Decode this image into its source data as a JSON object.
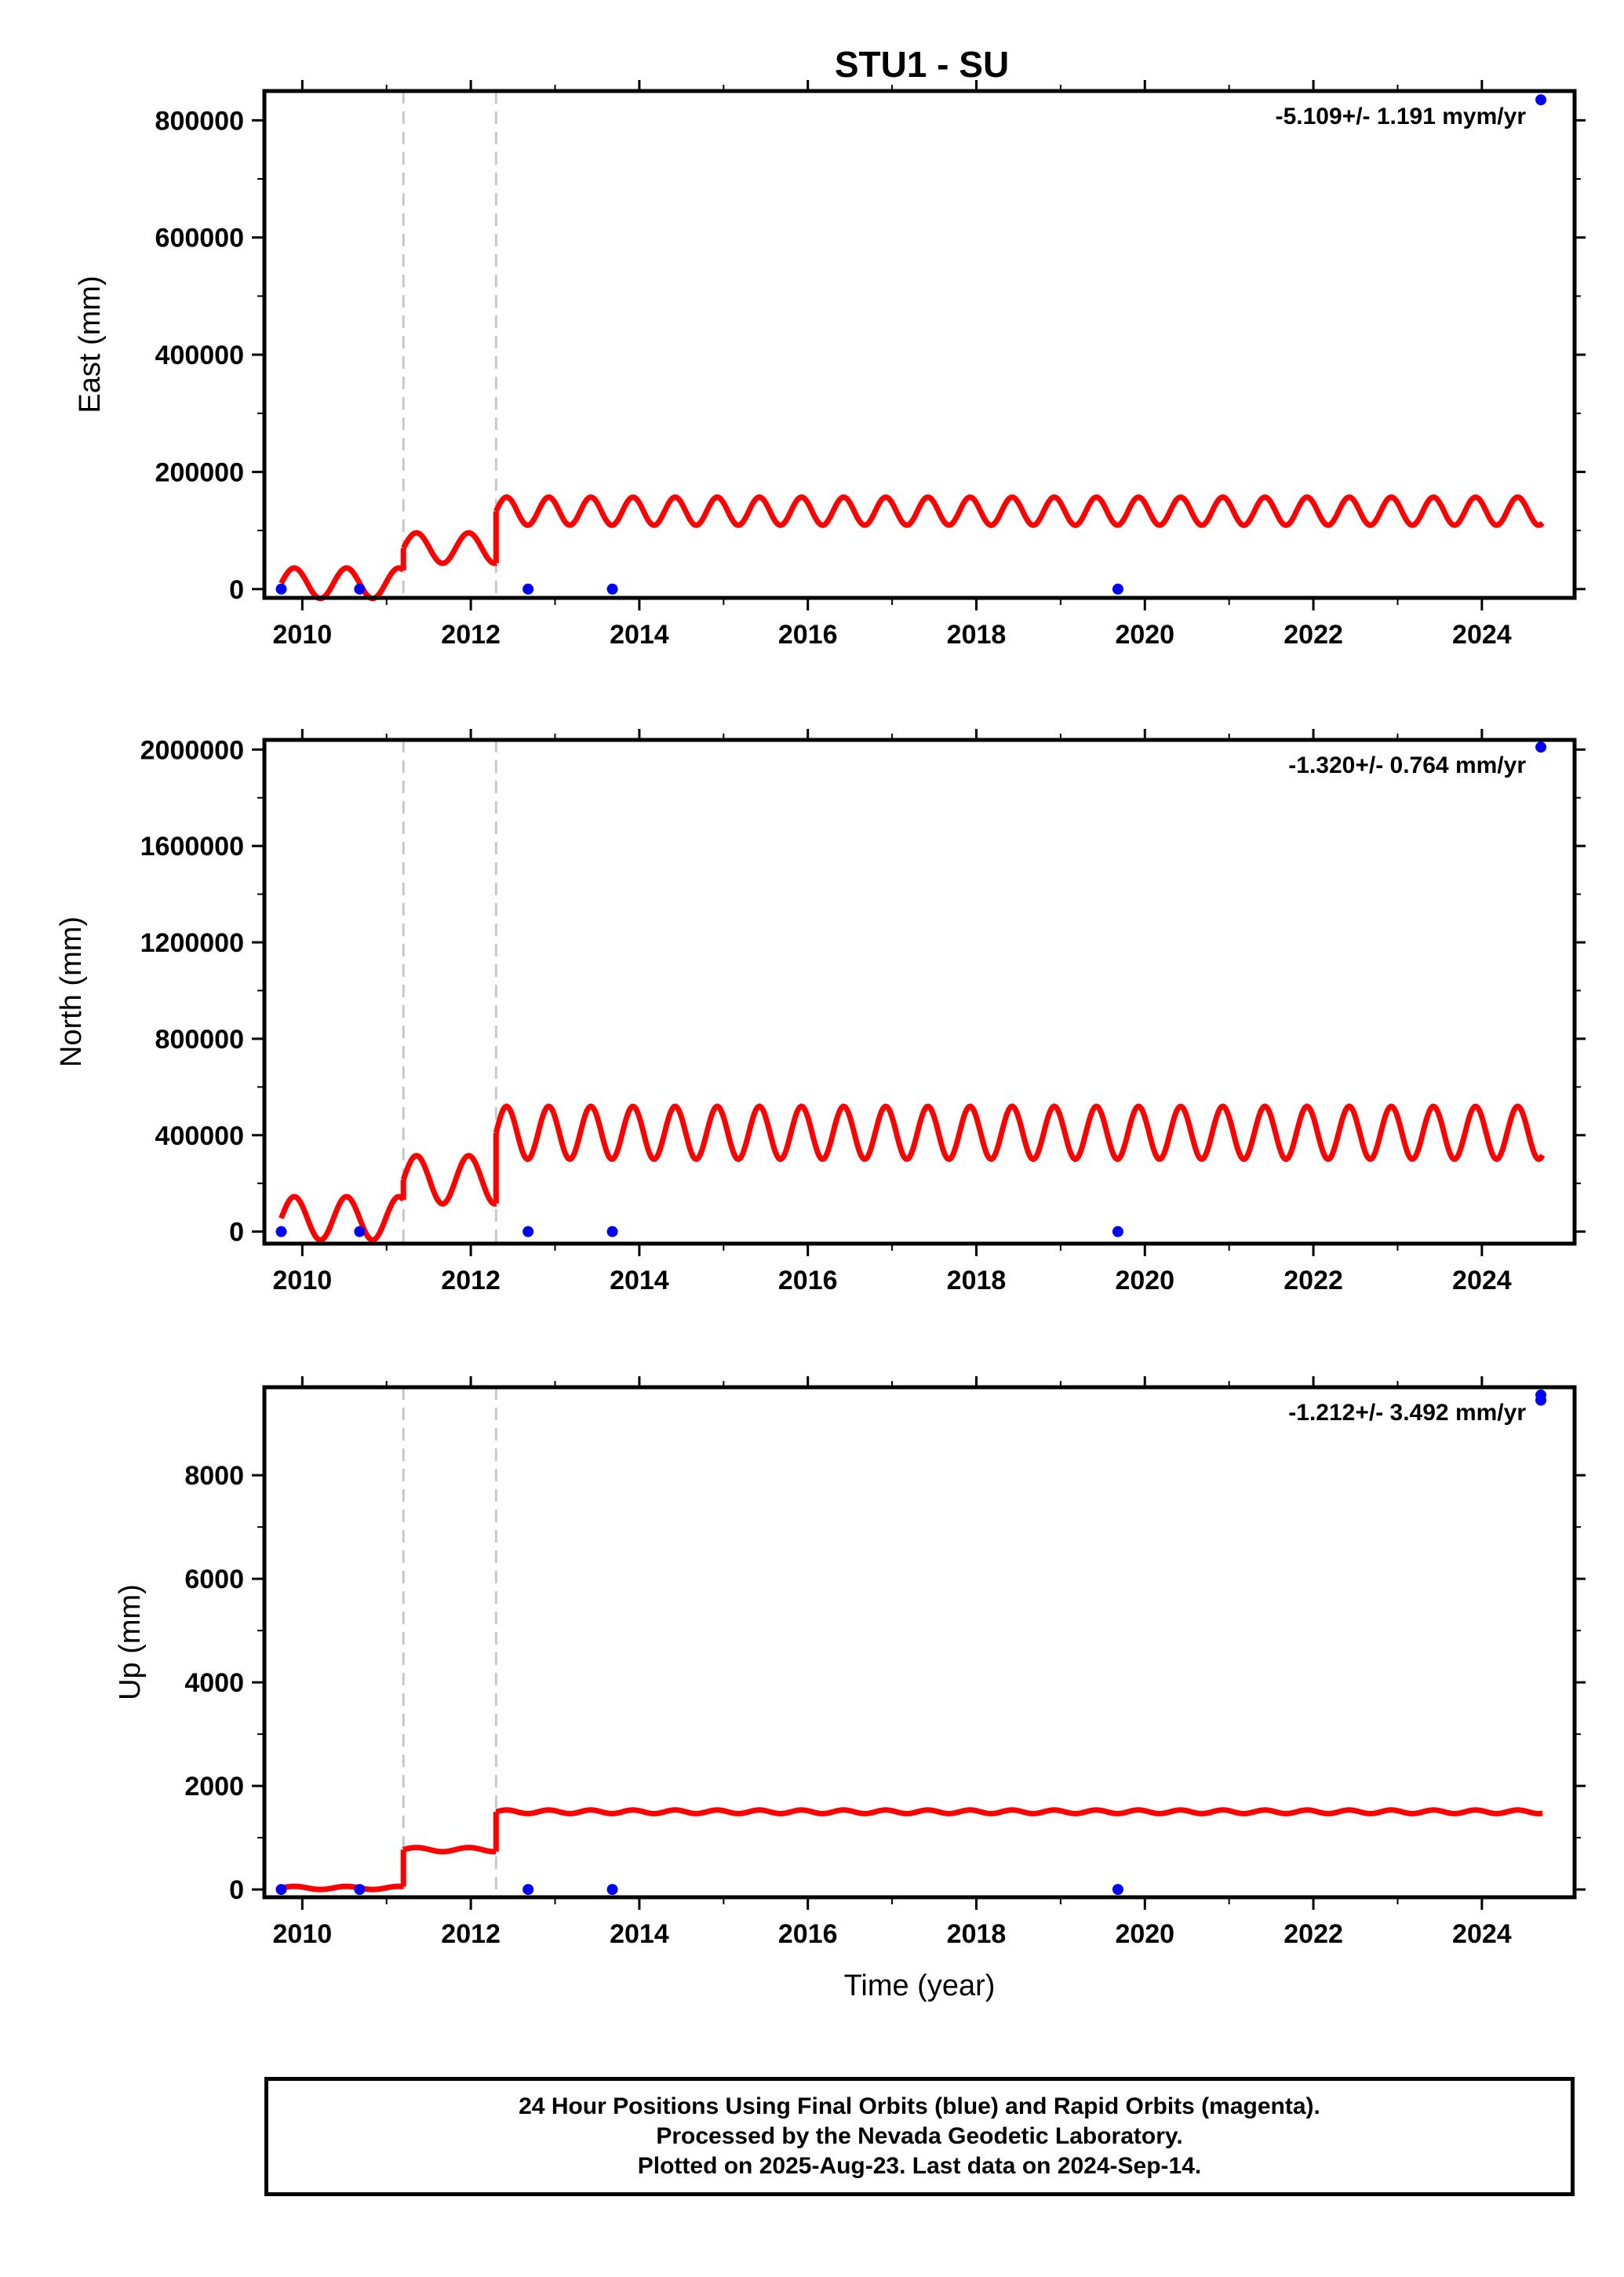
{
  "title": "STU1 - SU",
  "caption": {
    "line1": "24 Hour Positions Using Final Orbits (blue) and Rapid Orbits (magenta).",
    "line2": "Processed by the Nevada Geodetic Laboratory.",
    "line3": "Plotted on 2025-Aug-23. Last data on 2024-Sep-14."
  },
  "colors": {
    "data": "#0000ff",
    "model": "#ff0000",
    "breaks": "#c8c8c8",
    "frame": "#000000"
  },
  "chart_data": [
    {
      "type": "scatter",
      "panel": "east",
      "ylabel": "East (mm)",
      "xlabel": "",
      "rate_label": "-5.109+/- 1.191 mym/yr",
      "xlim": [
        2009.55,
        2025.1
      ],
      "ylim": [
        -15000,
        850000
      ],
      "xticks": [
        2010,
        2012,
        2014,
        2016,
        2018,
        2020,
        2022,
        2024
      ],
      "yticks": [
        0,
        200000,
        400000,
        600000,
        800000
      ],
      "breaks": [
        2011.2,
        2012.3
      ],
      "points": [
        [
          2009.75,
          0
        ],
        [
          2010.68,
          0
        ],
        [
          2012.68,
          0
        ],
        [
          2013.68,
          0
        ],
        [
          2019.68,
          0
        ],
        [
          2024.7,
          835000
        ]
      ],
      "model": {
        "segments": [
          {
            "x0": 2009.75,
            "x1": 2011.2,
            "base": 10000,
            "amp": 26000,
            "period": 0.62
          },
          {
            "x0": 2011.2,
            "x1": 2012.3,
            "base": 70000,
            "amp": 26000,
            "period": 0.62
          },
          {
            "x0": 2012.3,
            "x1": 2024.72,
            "base": 133000,
            "amp": 24000,
            "period": 0.5
          }
        ]
      }
    },
    {
      "type": "scatter",
      "panel": "north",
      "ylabel": "North (mm)",
      "xlabel": "",
      "rate_label": "-1.320+/- 0.764 mm/yr",
      "xlim": [
        2009.55,
        2025.1
      ],
      "ylim": [
        -50000,
        2040000
      ],
      "xticks": [
        2010,
        2012,
        2014,
        2016,
        2018,
        2020,
        2022,
        2024
      ],
      "yticks": [
        0,
        400000,
        800000,
        1200000,
        1600000,
        2000000
      ],
      "breaks": [
        2011.2,
        2012.3
      ],
      "points": [
        [
          2009.75,
          0
        ],
        [
          2010.68,
          0
        ],
        [
          2012.68,
          0
        ],
        [
          2013.68,
          0
        ],
        [
          2019.68,
          0
        ],
        [
          2024.7,
          2010000
        ]
      ],
      "model": {
        "segments": [
          {
            "x0": 2009.75,
            "x1": 2011.2,
            "base": 55000,
            "amp": 90000,
            "period": 0.62
          },
          {
            "x0": 2011.2,
            "x1": 2012.3,
            "base": 215000,
            "amp": 100000,
            "period": 0.62
          },
          {
            "x0": 2012.3,
            "x1": 2024.72,
            "base": 410000,
            "amp": 110000,
            "period": 0.5
          }
        ]
      }
    },
    {
      "type": "scatter",
      "panel": "up",
      "ylabel": "Up (mm)",
      "xlabel": "Time (year)",
      "rate_label": "-1.212+/- 3.492 mm/yr",
      "xlim": [
        2009.55,
        2025.1
      ],
      "ylim": [
        -150,
        9700
      ],
      "xticks": [
        2010,
        2012,
        2014,
        2016,
        2018,
        2020,
        2022,
        2024
      ],
      "yticks": [
        0,
        2000,
        4000,
        6000,
        8000
      ],
      "breaks": [
        2011.2,
        2012.3
      ],
      "points": [
        [
          2009.75,
          0
        ],
        [
          2010.68,
          0
        ],
        [
          2012.68,
          0
        ],
        [
          2013.68,
          0
        ],
        [
          2019.68,
          0
        ],
        [
          2024.7,
          9450
        ],
        [
          2024.7,
          9550
        ]
      ],
      "model": {
        "segments": [
          {
            "x0": 2009.75,
            "x1": 2011.2,
            "base": 30,
            "amp": 30,
            "period": 0.62
          },
          {
            "x0": 2011.2,
            "x1": 2012.3,
            "base": 770,
            "amp": 40,
            "period": 0.62
          },
          {
            "x0": 2012.3,
            "x1": 2024.72,
            "base": 1500,
            "amp": 35,
            "period": 0.5
          }
        ]
      }
    }
  ]
}
